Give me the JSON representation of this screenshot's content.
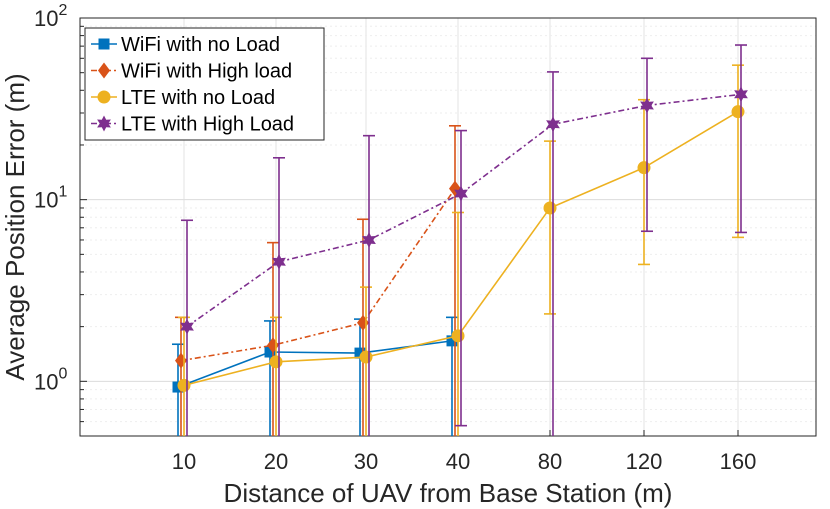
{
  "chart_data": {
    "type": "line",
    "title": "",
    "xlabel": "Distance of UAV from Base Station (m)",
    "ylabel": "Average Position Error (m)",
    "yscale": "log",
    "ylim": [
      0.5,
      100
    ],
    "grid": true,
    "legend_position": "top-left",
    "categories": [
      "10",
      "20",
      "30",
      "40",
      "80",
      "120",
      "160"
    ],
    "y_ticks": [
      {
        "value": 1,
        "base": "10",
        "exp": "0"
      },
      {
        "value": 10,
        "base": "10",
        "exp": "1"
      },
      {
        "value": 100,
        "base": "10",
        "exp": "2"
      }
    ],
    "series": [
      {
        "name": "WiFi with no Load",
        "color": "#0072BD",
        "marker": "square",
        "line_style": "solid",
        "values": [
          0.93,
          1.45,
          1.43,
          1.67,
          null,
          null,
          null
        ],
        "err_low": [
          0.5,
          0.5,
          0.5,
          0.5,
          null,
          null,
          null
        ],
        "err_high": [
          1.6,
          2.15,
          2.2,
          2.25,
          null,
          null,
          null
        ]
      },
      {
        "name": "WiFi with High load",
        "color": "#D95319",
        "marker": "diamond",
        "line_style": "dashdot",
        "values": [
          1.3,
          1.58,
          2.1,
          11.5,
          null,
          null,
          null
        ],
        "err_low": [
          0.5,
          0.5,
          0.5,
          0.5,
          null,
          null,
          null
        ],
        "err_high": [
          2.25,
          5.8,
          7.8,
          25.5,
          null,
          null,
          null
        ]
      },
      {
        "name": "LTE with no Load",
        "color": "#EDB120",
        "marker": "circle",
        "line_style": "solid",
        "values": [
          0.95,
          1.28,
          1.36,
          1.78,
          9.0,
          15.0,
          30.5
        ],
        "err_low": [
          0.5,
          0.5,
          0.5,
          0.5,
          2.35,
          4.4,
          6.2
        ],
        "err_high": [
          2.25,
          2.25,
          3.3,
          8.5,
          21.0,
          35.5,
          55.0
        ]
      },
      {
        "name": "LTE with High Load",
        "color": "#7E2F8E",
        "marker": "hexagram",
        "line_style": "dashdot",
        "values": [
          2.0,
          4.55,
          6.0,
          10.8,
          26.0,
          33.0,
          38.0
        ],
        "err_low": [
          0.5,
          0.5,
          0.5,
          0.57,
          0.5,
          6.7,
          6.6
        ],
        "err_high": [
          7.7,
          17.0,
          22.5,
          24.0,
          50.5,
          60.0,
          71.0
        ]
      }
    ]
  }
}
